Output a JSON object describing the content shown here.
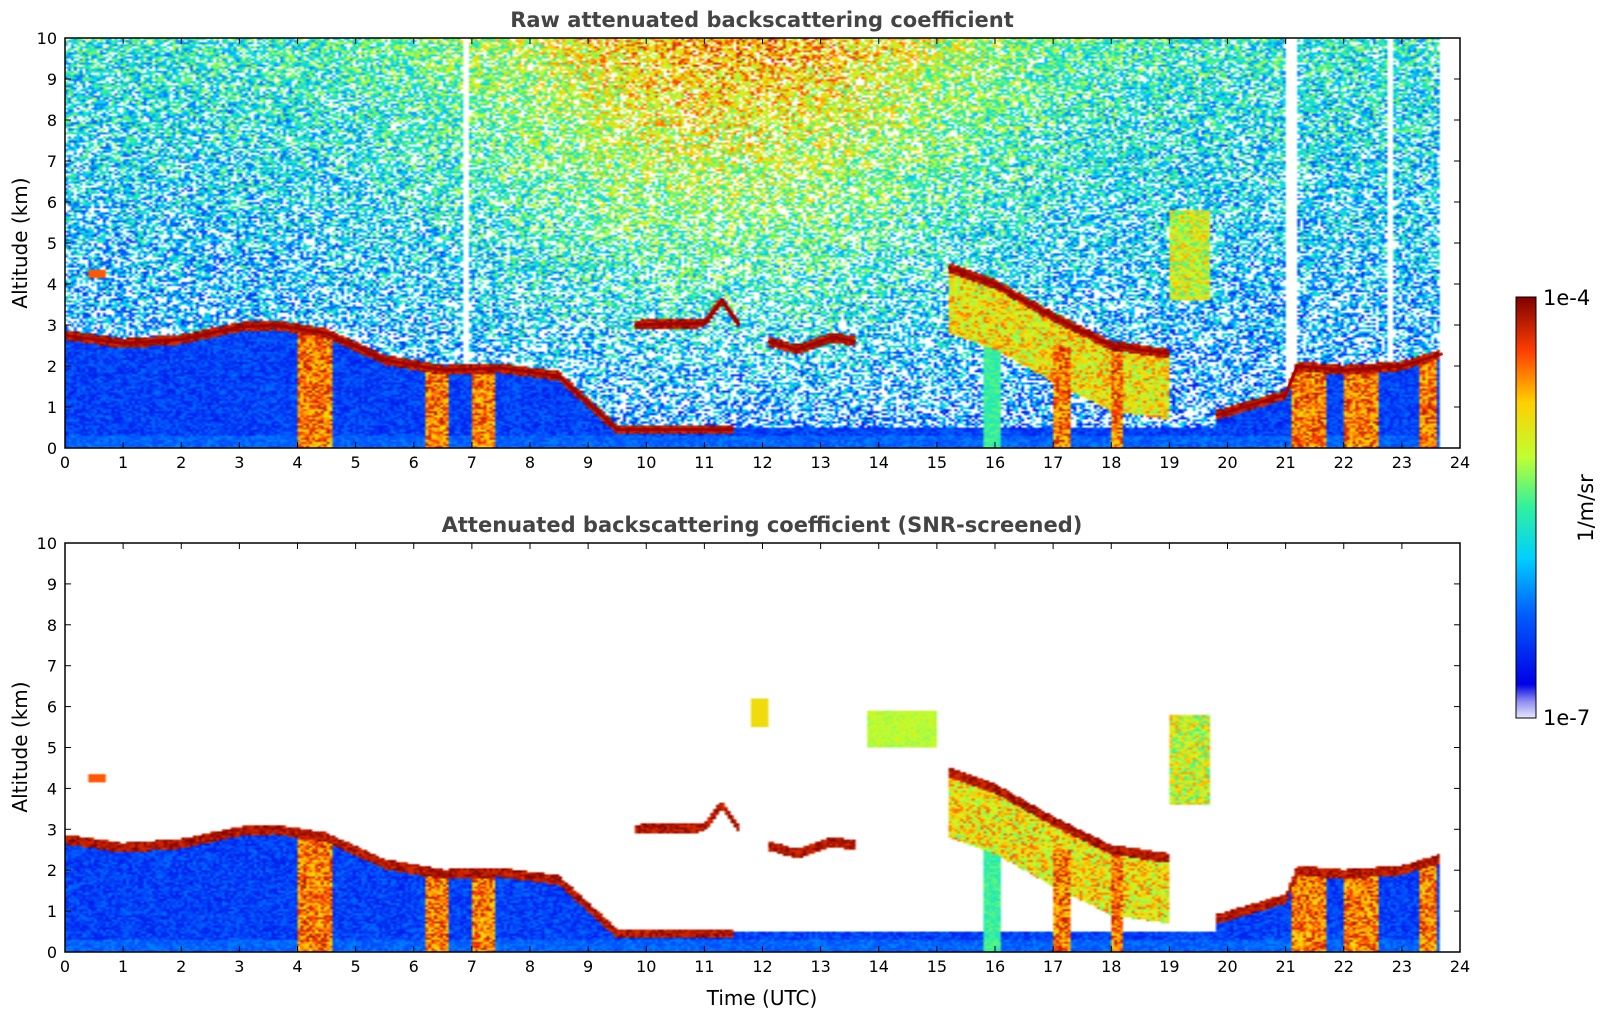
{
  "chart_data": [
    {
      "type": "heatmap",
      "title": "Raw attenuated backscattering coefficient",
      "xlabel": "",
      "ylabel": "Altitude (km)",
      "xlim": [
        0,
        24
      ],
      "ylim": [
        0,
        10
      ],
      "xticks": [
        "0",
        "1",
        "2",
        "3",
        "4",
        "5",
        "6",
        "7",
        "8",
        "9",
        "10",
        "11",
        "12",
        "13",
        "14",
        "15",
        "16",
        "17",
        "18",
        "19",
        "20",
        "21",
        "22",
        "23",
        "24"
      ],
      "yticks": [
        "0",
        "1",
        "2",
        "3",
        "4",
        "5",
        "6",
        "7",
        "8",
        "9",
        "10"
      ],
      "features": [
        {
          "name": "boundary layer top",
          "points": [
            [
              0,
              2.75
            ],
            [
              1,
              2.55
            ],
            [
              2,
              2.65
            ],
            [
              3,
              2.95
            ],
            [
              3.6,
              3.0
            ],
            [
              4.5,
              2.8
            ],
            [
              5.5,
              2.15
            ],
            [
              6.5,
              1.9
            ],
            [
              7.5,
              1.95
            ],
            [
              8.5,
              1.75
            ],
            [
              9.5,
              0.45
            ],
            [
              11.5,
              0.45
            ]
          ]
        },
        {
          "name": "elevated layer",
          "points": [
            [
              9.8,
              3.0
            ],
            [
              11,
              3.05
            ],
            [
              11.3,
              3.6
            ],
            [
              11.6,
              3.0
            ]
          ]
        },
        {
          "name": "elevated layer",
          "points": [
            [
              12.1,
              2.6
            ],
            [
              12.6,
              2.4
            ],
            [
              13.2,
              2.7
            ],
            [
              13.6,
              2.6
            ]
          ]
        },
        {
          "name": "descending cloud",
          "points": [
            [
              15.2,
              4.4
            ],
            [
              16,
              4.0
            ],
            [
              17,
              3.2
            ],
            [
              18,
              2.5
            ],
            [
              19,
              2.3
            ]
          ]
        },
        {
          "name": "evening layer",
          "points": [
            [
              19.8,
              0.8
            ],
            [
              21,
              1.3
            ],
            [
              21.2,
              2.0
            ],
            [
              22,
              1.9
            ],
            [
              23,
              2.0
            ],
            [
              23.7,
              2.3
            ]
          ]
        }
      ]
    },
    {
      "type": "heatmap",
      "title": "Attenuated backscattering coefficient (SNR-screened)",
      "xlabel": "Time (UTC)",
      "ylabel": "Altitude (km)",
      "xlim": [
        0,
        24
      ],
      "ylim": [
        0,
        10
      ],
      "xticks": [
        "0",
        "1",
        "2",
        "3",
        "4",
        "5",
        "6",
        "7",
        "8",
        "9",
        "10",
        "11",
        "12",
        "13",
        "14",
        "15",
        "16",
        "17",
        "18",
        "19",
        "20",
        "21",
        "22",
        "23",
        "24"
      ],
      "yticks": [
        "0",
        "1",
        "2",
        "3",
        "4",
        "5",
        "6",
        "7",
        "8",
        "9",
        "10"
      ]
    }
  ],
  "colorbar": {
    "min_label": "1e-7",
    "max_label": "1e-4",
    "unit_label": "1/m/sr",
    "colormap": "jet"
  }
}
